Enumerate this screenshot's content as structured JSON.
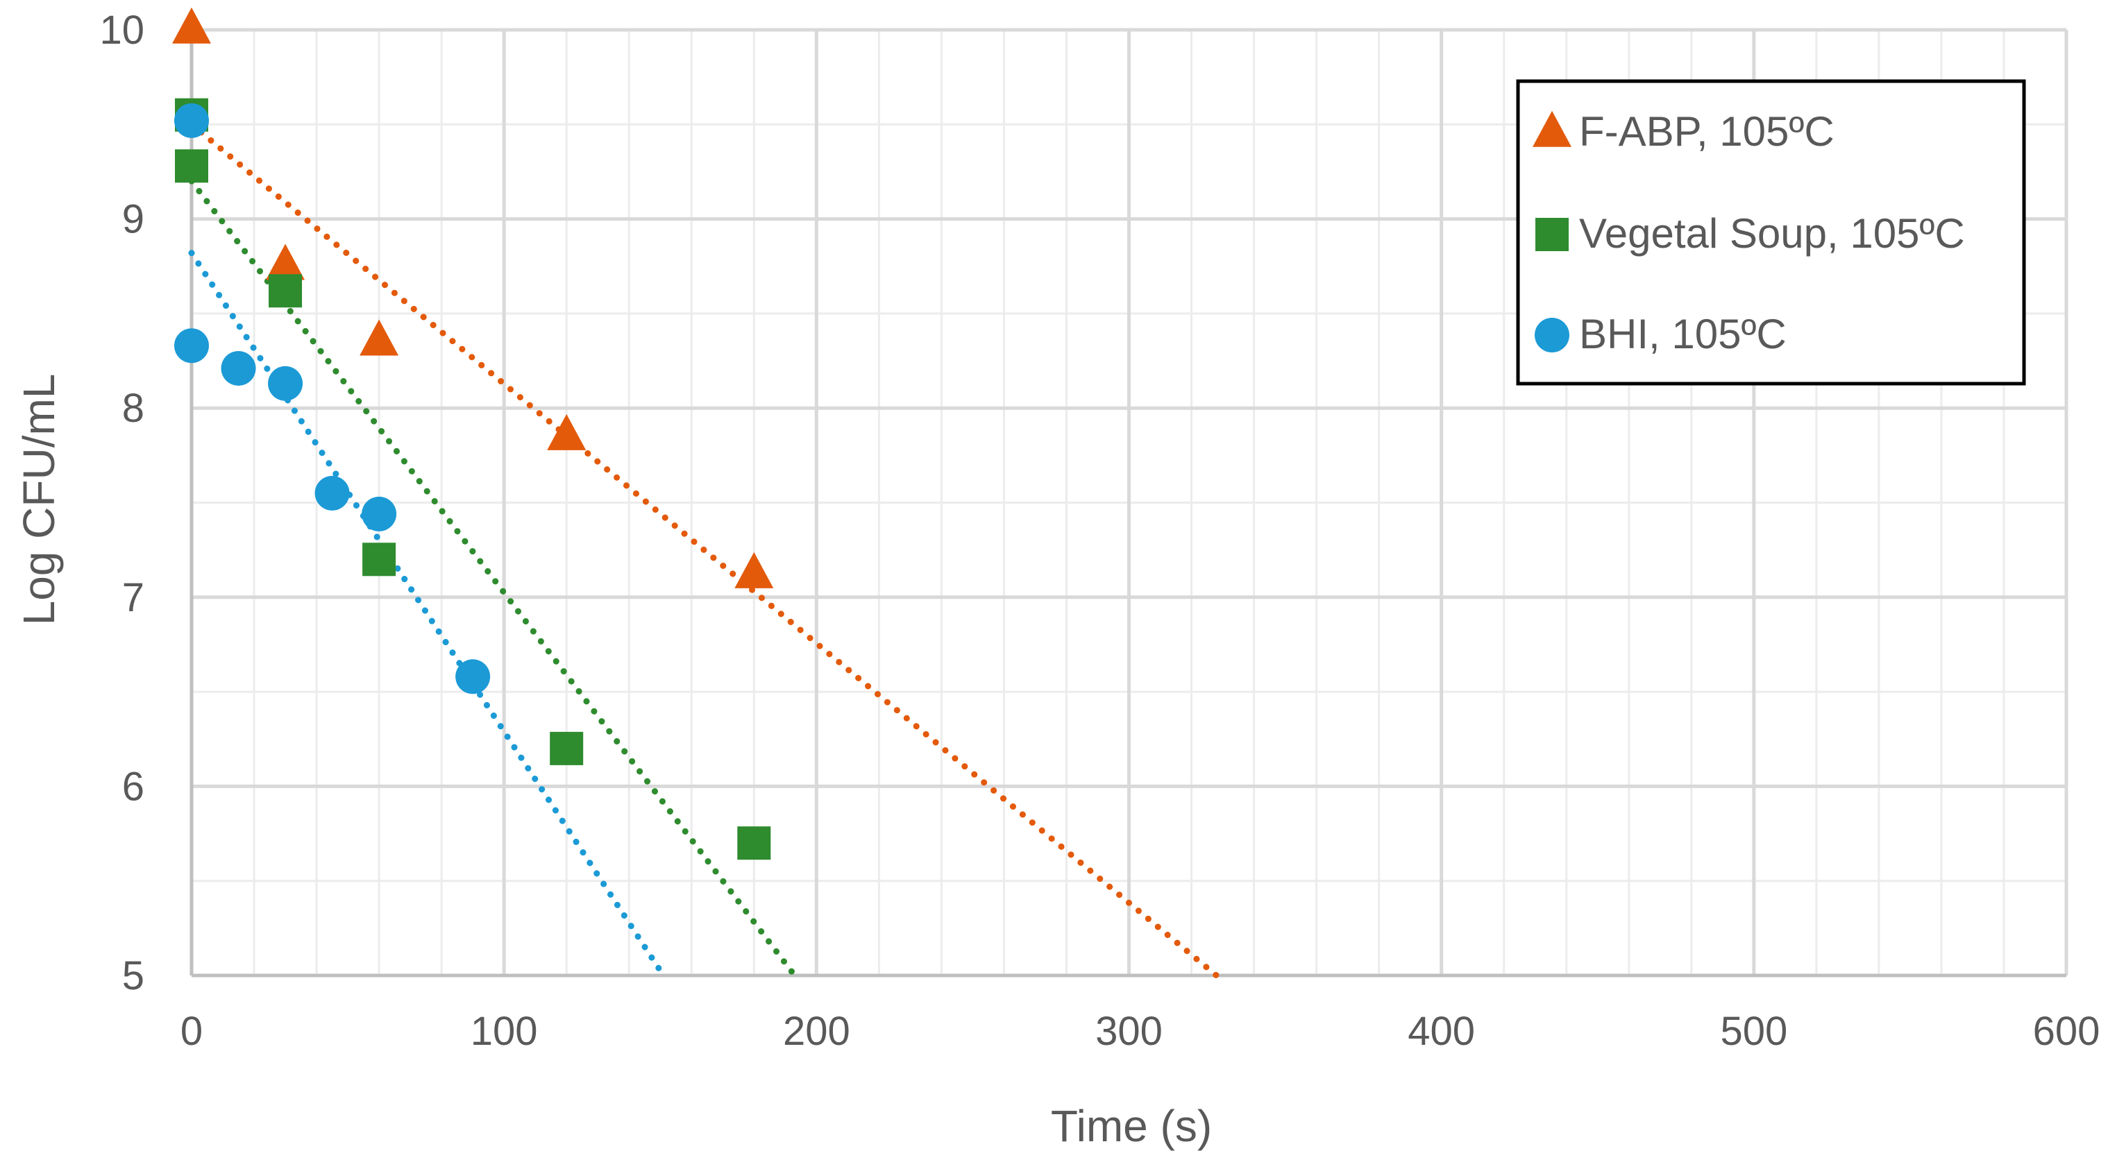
{
  "chart_data": {
    "type": "scatter",
    "title": "",
    "xlabel": "Time (s)",
    "ylabel": "Log CFU/mL",
    "xlim": [
      0,
      600
    ],
    "ylim": [
      5,
      10
    ],
    "x_major_ticks": [
      "0",
      "100",
      "200",
      "300",
      "400",
      "500",
      "600"
    ],
    "y_major_ticks": [
      "5",
      "6",
      "7",
      "8",
      "9",
      "10"
    ],
    "grid": true,
    "legend_position": "top-right",
    "series": [
      {
        "name": "F-ABP, 105ºC",
        "marker": "triangle",
        "color": "#E35A0B",
        "x": [
          0,
          30,
          60,
          120,
          180
        ],
        "y": [
          10.0,
          8.75,
          8.35,
          7.85,
          7.12
        ],
        "trendline": {
          "type": "linear",
          "x_start": 0,
          "y_start": 9.5,
          "x_end": 328,
          "y_end": 5.0
        }
      },
      {
        "name": "Vegetal Soup, 105ºC",
        "marker": "square",
        "color": "#2E8B2E",
        "x": [
          0,
          0,
          30,
          60,
          120,
          180
        ],
        "y": [
          9.55,
          9.28,
          8.62,
          7.2,
          6.2,
          5.7
        ],
        "trendline": {
          "type": "linear",
          "x_start": 0,
          "y_start": 9.2,
          "x_end": 193,
          "y_end": 5.0
        }
      },
      {
        "name": "BHI, 105ºC",
        "marker": "circle",
        "color": "#1B9AD6",
        "x": [
          0,
          0,
          15,
          30,
          45,
          60,
          90
        ],
        "y": [
          9.52,
          8.33,
          8.21,
          8.13,
          7.55,
          7.44,
          6.58
        ],
        "trendline": {
          "type": "linear",
          "x_start": 0,
          "y_start": 8.82,
          "x_end": 151,
          "y_end": 5.0
        }
      }
    ]
  }
}
